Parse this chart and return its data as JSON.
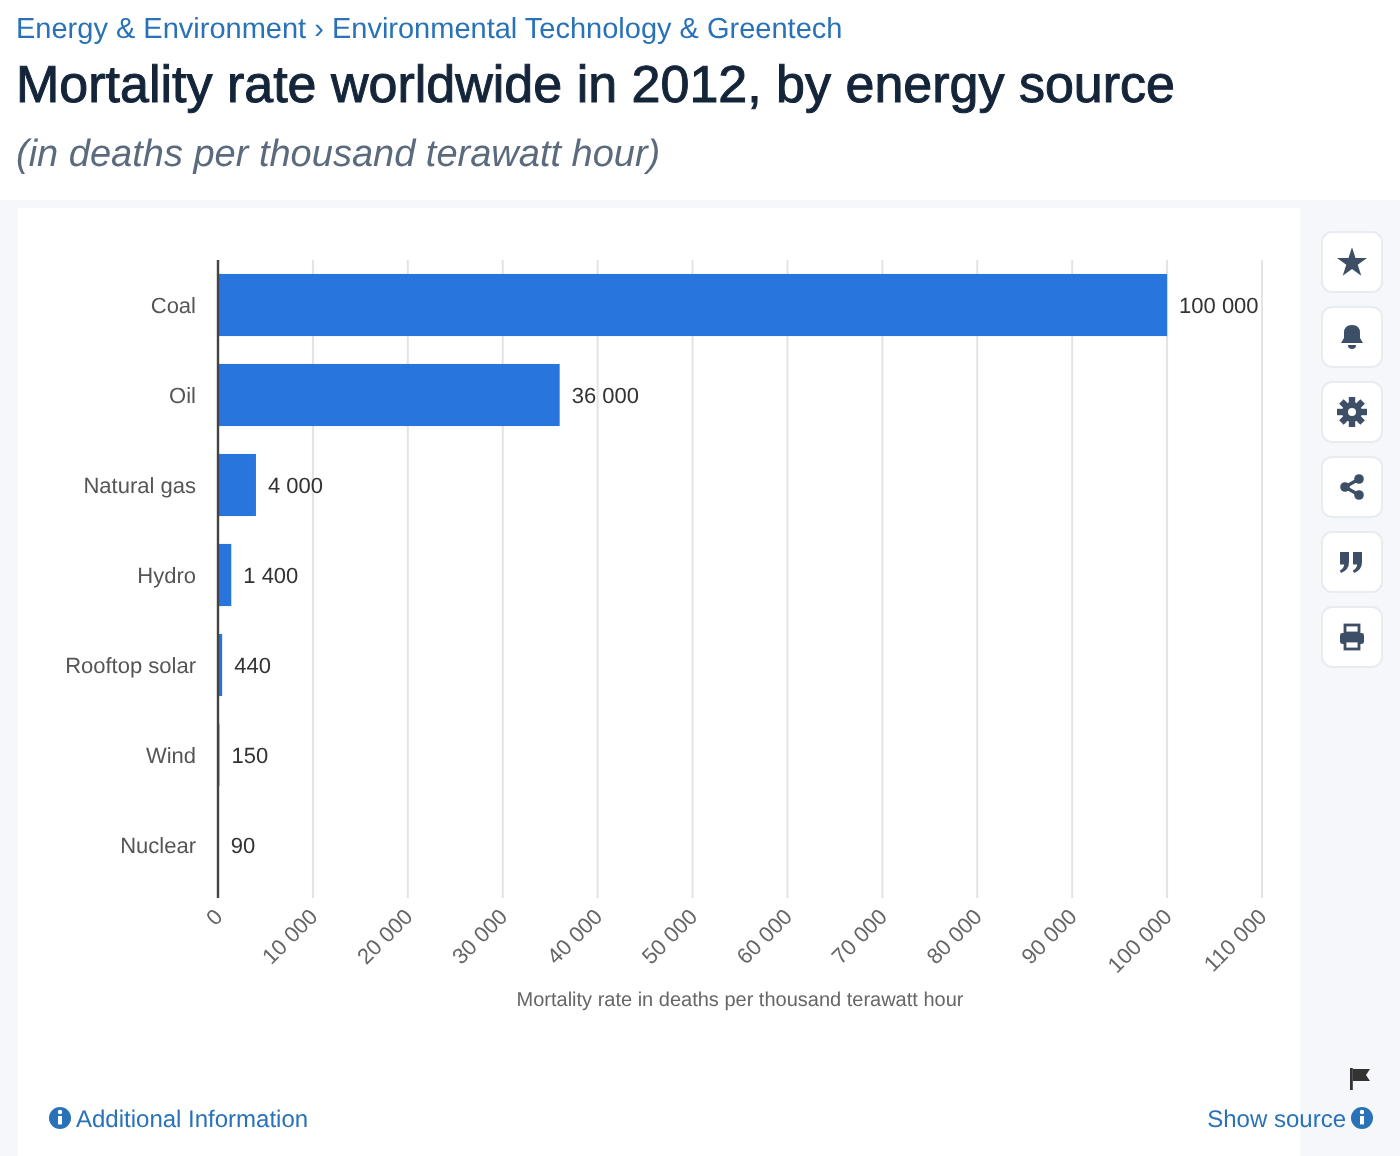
{
  "chart_data": {
    "type": "bar",
    "orientation": "horizontal",
    "title": "Mortality rate worldwide in 2012, by energy source",
    "subtitle": "(in deaths per thousand terawatt hour)",
    "xlabel": "Mortality rate in deaths per thousand terawatt hour",
    "categories": [
      "Coal",
      "Oil",
      "Natural gas",
      "Hydro",
      "Rooftop solar",
      "Wind",
      "Nuclear"
    ],
    "values": [
      100000,
      36000,
      4000,
      1400,
      440,
      150,
      90
    ],
    "value_labels": [
      "100 000",
      "36 000",
      "4 000",
      "1 400",
      "440",
      "150",
      "90"
    ],
    "color": "#2876dd",
    "xlim": [
      0,
      110000
    ],
    "xticks": [
      0,
      {
        "value": 10000,
        "label": "10 000"
      },
      {
        "value": 20000,
        "label": "20 000"
      },
      {
        "value": 30000,
        "label": "30 000"
      },
      {
        "value": 40000,
        "label": "40 000"
      },
      {
        "value": 50000,
        "label": "50 000"
      },
      {
        "value": 60000,
        "label": "60 000"
      },
      {
        "value": 70000,
        "label": "70 000"
      },
      {
        "value": 80000,
        "label": "80 000"
      },
      {
        "value": 90000,
        "label": "90 000"
      },
      {
        "value": 100000,
        "label": "100 000"
      },
      {
        "value": 110000,
        "label": "110 000"
      }
    ],
    "grid": "x",
    "annotations": [
      "Energy & Environment › Environmental Technology & Greentech",
      "Additional Information",
      "Show source"
    ]
  }
}
